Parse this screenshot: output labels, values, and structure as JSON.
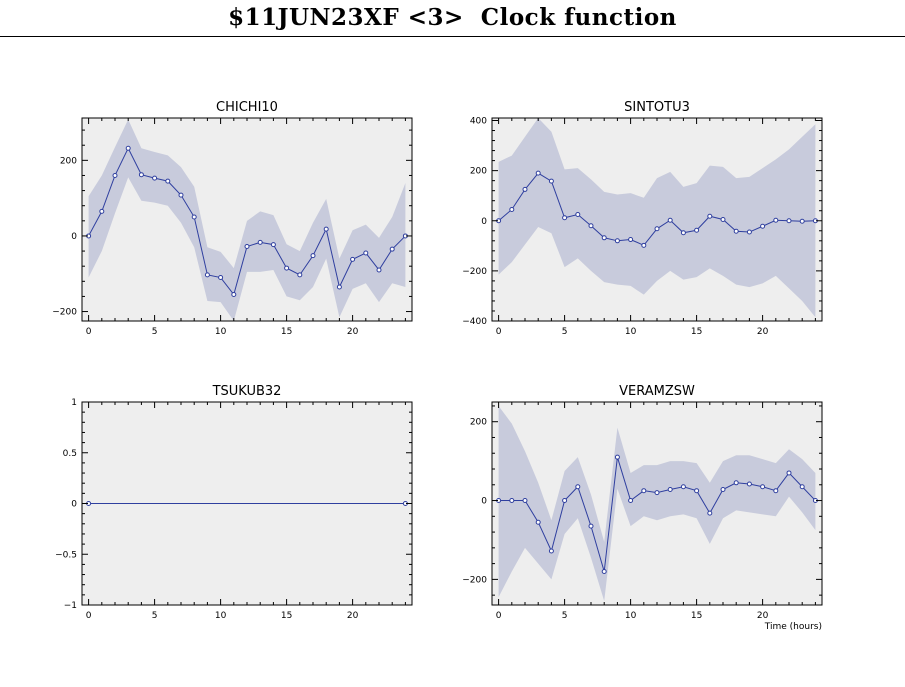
{
  "page": {
    "title": "$11JUN23XF <3>  Clock function"
  },
  "style": {
    "panel_bg": "#eeeeee",
    "band_color": "#c8cbdc",
    "line_color": "#2f3f9f",
    "axis_color": "#000000"
  },
  "chart_data": [
    {
      "type": "line",
      "title": "CHICHI10",
      "xlabel": "",
      "ylabel": "",
      "xlim": [
        -0.5,
        24.5
      ],
      "ylim": [
        -225,
        312
      ],
      "xticks": [
        0,
        5,
        10,
        15,
        20
      ],
      "yticks": [
        -200,
        0,
        200
      ],
      "x": [
        0,
        1,
        2,
        3,
        4,
        5,
        6,
        7,
        8,
        9,
        10,
        11,
        12,
        13,
        14,
        15,
        16,
        17,
        18,
        19,
        20,
        21,
        22,
        23,
        24
      ],
      "series": [
        {
          "values": [
            0,
            65,
            160,
            232,
            162,
            153,
            145,
            108,
            50,
            -103,
            -110,
            -155,
            -28,
            -17,
            -23,
            -85,
            -103,
            -52,
            18,
            -135,
            -62,
            -45,
            -90,
            -35,
            0
          ],
          "lower": [
            -110,
            -40,
            60,
            155,
            93,
            88,
            80,
            35,
            -30,
            -172,
            -175,
            -225,
            -95,
            -95,
            -90,
            -160,
            -170,
            -135,
            -60,
            -215,
            -140,
            -125,
            -175,
            -125,
            -135
          ],
          "upper": [
            105,
            160,
            235,
            308,
            232,
            222,
            213,
            182,
            130,
            -30,
            -42,
            -85,
            40,
            65,
            55,
            -22,
            -40,
            35,
            98,
            -60,
            15,
            30,
            -5,
            50,
            140
          ]
        }
      ]
    },
    {
      "type": "line",
      "title": "SINTOTU3",
      "xlabel": "",
      "ylabel": "",
      "xlim": [
        -0.5,
        24.5
      ],
      "ylim": [
        -400,
        410
      ],
      "xticks": [
        0,
        5,
        10,
        15,
        20
      ],
      "yticks": [
        -400,
        -200,
        0,
        200,
        400
      ],
      "x": [
        0,
        1,
        2,
        3,
        4,
        5,
        6,
        7,
        8,
        9,
        10,
        11,
        12,
        13,
        14,
        15,
        16,
        17,
        18,
        19,
        20,
        21,
        22,
        23,
        24
      ],
      "series": [
        {
          "values": [
            0,
            45,
            125,
            190,
            158,
            12,
            25,
            -20,
            -68,
            -80,
            -75,
            -98,
            -32,
            2,
            -48,
            -38,
            18,
            5,
            -42,
            -45,
            -22,
            2,
            0,
            -2,
            0
          ],
          "lower": [
            -215,
            -165,
            -95,
            -25,
            -50,
            -185,
            -150,
            -200,
            -245,
            -255,
            -260,
            -295,
            -240,
            -200,
            -235,
            -225,
            -190,
            -220,
            -255,
            -265,
            -250,
            -220,
            -270,
            -320,
            -385
          ],
          "upper": [
            235,
            260,
            335,
            410,
            355,
            205,
            210,
            165,
            115,
            105,
            110,
            92,
            170,
            195,
            135,
            150,
            220,
            215,
            170,
            175,
            210,
            245,
            285,
            335,
            385
          ]
        }
      ]
    },
    {
      "type": "line",
      "title": "TSUKUB32",
      "xlabel": "",
      "ylabel": "",
      "xlim": [
        -0.5,
        24.5
      ],
      "ylim": [
        -1,
        1
      ],
      "xticks": [
        0,
        5,
        10,
        15,
        20
      ],
      "yticks": [
        -1,
        -0.5,
        0,
        0.5,
        1
      ],
      "x": [
        0,
        24
      ],
      "series": [
        {
          "values": [
            0,
            0
          ],
          "lower": [
            0,
            0
          ],
          "upper": [
            0,
            0
          ]
        }
      ]
    },
    {
      "type": "line",
      "title": "VERAMZSW",
      "xlabel": "Time (hours)",
      "ylabel": "",
      "xlim": [
        -0.5,
        24.5
      ],
      "ylim": [
        -265,
        250
      ],
      "xticks": [
        0,
        5,
        10,
        15,
        20
      ],
      "yticks": [
        -200,
        0,
        200
      ],
      "x": [
        0,
        1,
        2,
        3,
        4,
        5,
        6,
        7,
        8,
        9,
        10,
        11,
        12,
        13,
        14,
        15,
        16,
        17,
        18,
        19,
        20,
        21,
        22,
        23,
        24
      ],
      "series": [
        {
          "values": [
            0,
            0,
            0,
            -55,
            -128,
            0,
            35,
            -65,
            -180,
            110,
            0,
            25,
            20,
            28,
            35,
            25,
            -32,
            28,
            45,
            42,
            35,
            25,
            70,
            35,
            0
          ],
          "lower": [
            -245,
            -180,
            -120,
            -160,
            -200,
            -85,
            -45,
            -145,
            -255,
            30,
            -65,
            -40,
            -50,
            -40,
            -35,
            -45,
            -110,
            -45,
            -25,
            -30,
            -35,
            -40,
            10,
            -30,
            -75
          ],
          "upper": [
            240,
            195,
            125,
            45,
            -50,
            75,
            110,
            15,
            -105,
            185,
            70,
            90,
            90,
            100,
            100,
            95,
            45,
            100,
            115,
            115,
            105,
            95,
            130,
            105,
            70
          ]
        }
      ]
    }
  ]
}
